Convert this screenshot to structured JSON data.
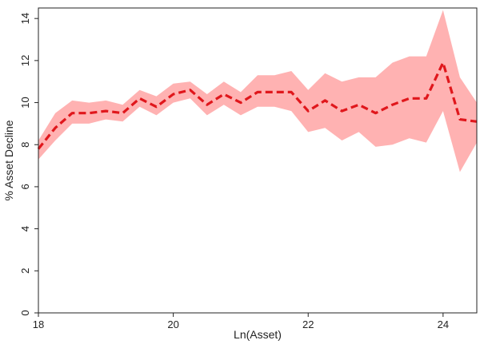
{
  "chart_data": {
    "type": "line",
    "title": "",
    "xlabel": "Ln(Asset)",
    "ylabel": "% Asset Decline",
    "xlim": [
      18,
      24.5
    ],
    "ylim": [
      0,
      14.5
    ],
    "xticks": [
      18,
      20,
      22,
      24
    ],
    "yticks": [
      0,
      2,
      4,
      6,
      8,
      10,
      12,
      14
    ],
    "grid": false,
    "legend": "none",
    "colors": {
      "line": "#e0171c",
      "band": "#ffaaaa",
      "axis": "#222222"
    },
    "x": [
      18.0,
      18.25,
      18.5,
      18.75,
      19.0,
      19.25,
      19.5,
      19.75,
      20.0,
      20.25,
      20.5,
      20.75,
      21.0,
      21.25,
      21.5,
      21.75,
      22.0,
      22.25,
      22.5,
      22.75,
      23.0,
      23.25,
      23.5,
      23.75,
      24.0,
      24.25,
      24.5
    ],
    "series": [
      {
        "role": "mean",
        "values": [
          7.8,
          8.8,
          9.5,
          9.5,
          9.6,
          9.5,
          10.2,
          9.8,
          10.4,
          10.6,
          9.9,
          10.4,
          10.0,
          10.5,
          10.5,
          10.5,
          9.6,
          10.1,
          9.6,
          9.9,
          9.5,
          9.9,
          10.2,
          10.2,
          11.9,
          9.2,
          9.1
        ]
      },
      {
        "role": "upper",
        "values": [
          8.2,
          9.5,
          10.1,
          10.0,
          10.1,
          9.9,
          10.6,
          10.3,
          10.9,
          11.0,
          10.4,
          11.0,
          10.5,
          11.3,
          11.3,
          11.5,
          10.6,
          11.4,
          11.0,
          11.2,
          11.2,
          11.9,
          12.2,
          12.2,
          14.4,
          11.2,
          10.0
        ]
      },
      {
        "role": "lower",
        "values": [
          7.3,
          8.2,
          9.0,
          9.0,
          9.2,
          9.1,
          9.8,
          9.4,
          10.0,
          10.2,
          9.4,
          9.9,
          9.4,
          9.8,
          9.8,
          9.6,
          8.6,
          8.8,
          8.2,
          8.6,
          7.9,
          8.0,
          8.3,
          8.1,
          9.6,
          6.7,
          8.1
        ]
      }
    ]
  }
}
